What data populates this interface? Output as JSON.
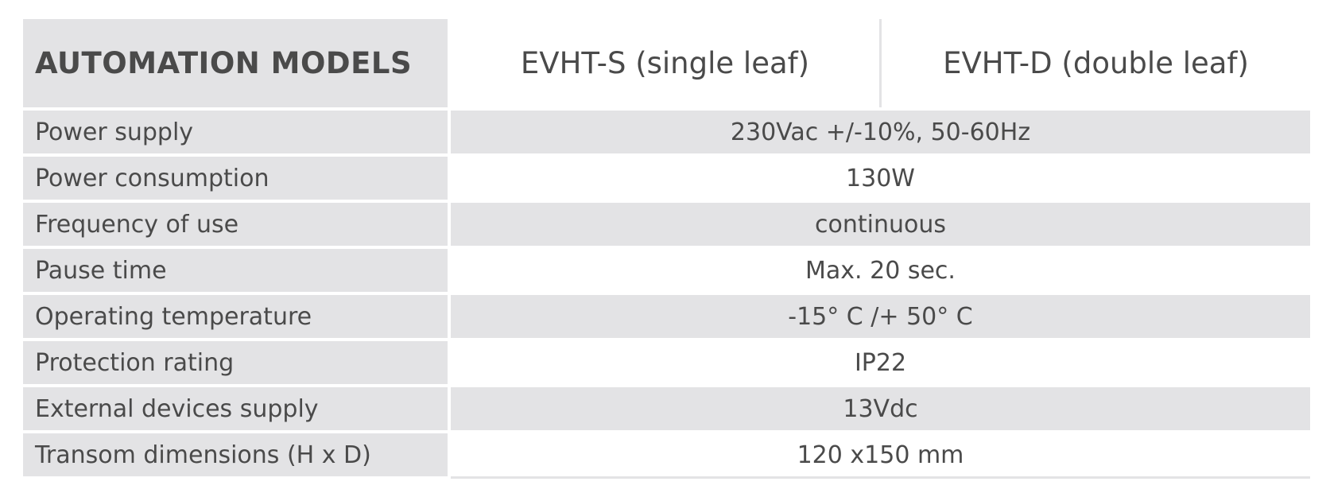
{
  "table": {
    "header_label": "AUTOMATION MODELS",
    "models": [
      "EVHT-S (single leaf)",
      "EVHT-D (double leaf)"
    ],
    "rows": [
      {
        "label": "Power supply",
        "value": "230Vac +/-10%, 50-60Hz"
      },
      {
        "label": "Power consumption",
        "value": "130W"
      },
      {
        "label": "Frequency of use",
        "value": "continuous"
      },
      {
        "label": "Pause time",
        "value": "Max. 20 sec."
      },
      {
        "label": "Operating temperature",
        "value": "-15° C /+ 50° C"
      },
      {
        "label": "Protection rating",
        "value": "IP22"
      },
      {
        "label": "External devices supply",
        "value": "13Vdc"
      },
      {
        "label": "Transom dimensions (H x D)",
        "value": "120 x150 mm"
      }
    ]
  },
  "colors": {
    "cell_gray": "#e3e3e5",
    "text": "#4a4a4a",
    "background": "#ffffff"
  }
}
